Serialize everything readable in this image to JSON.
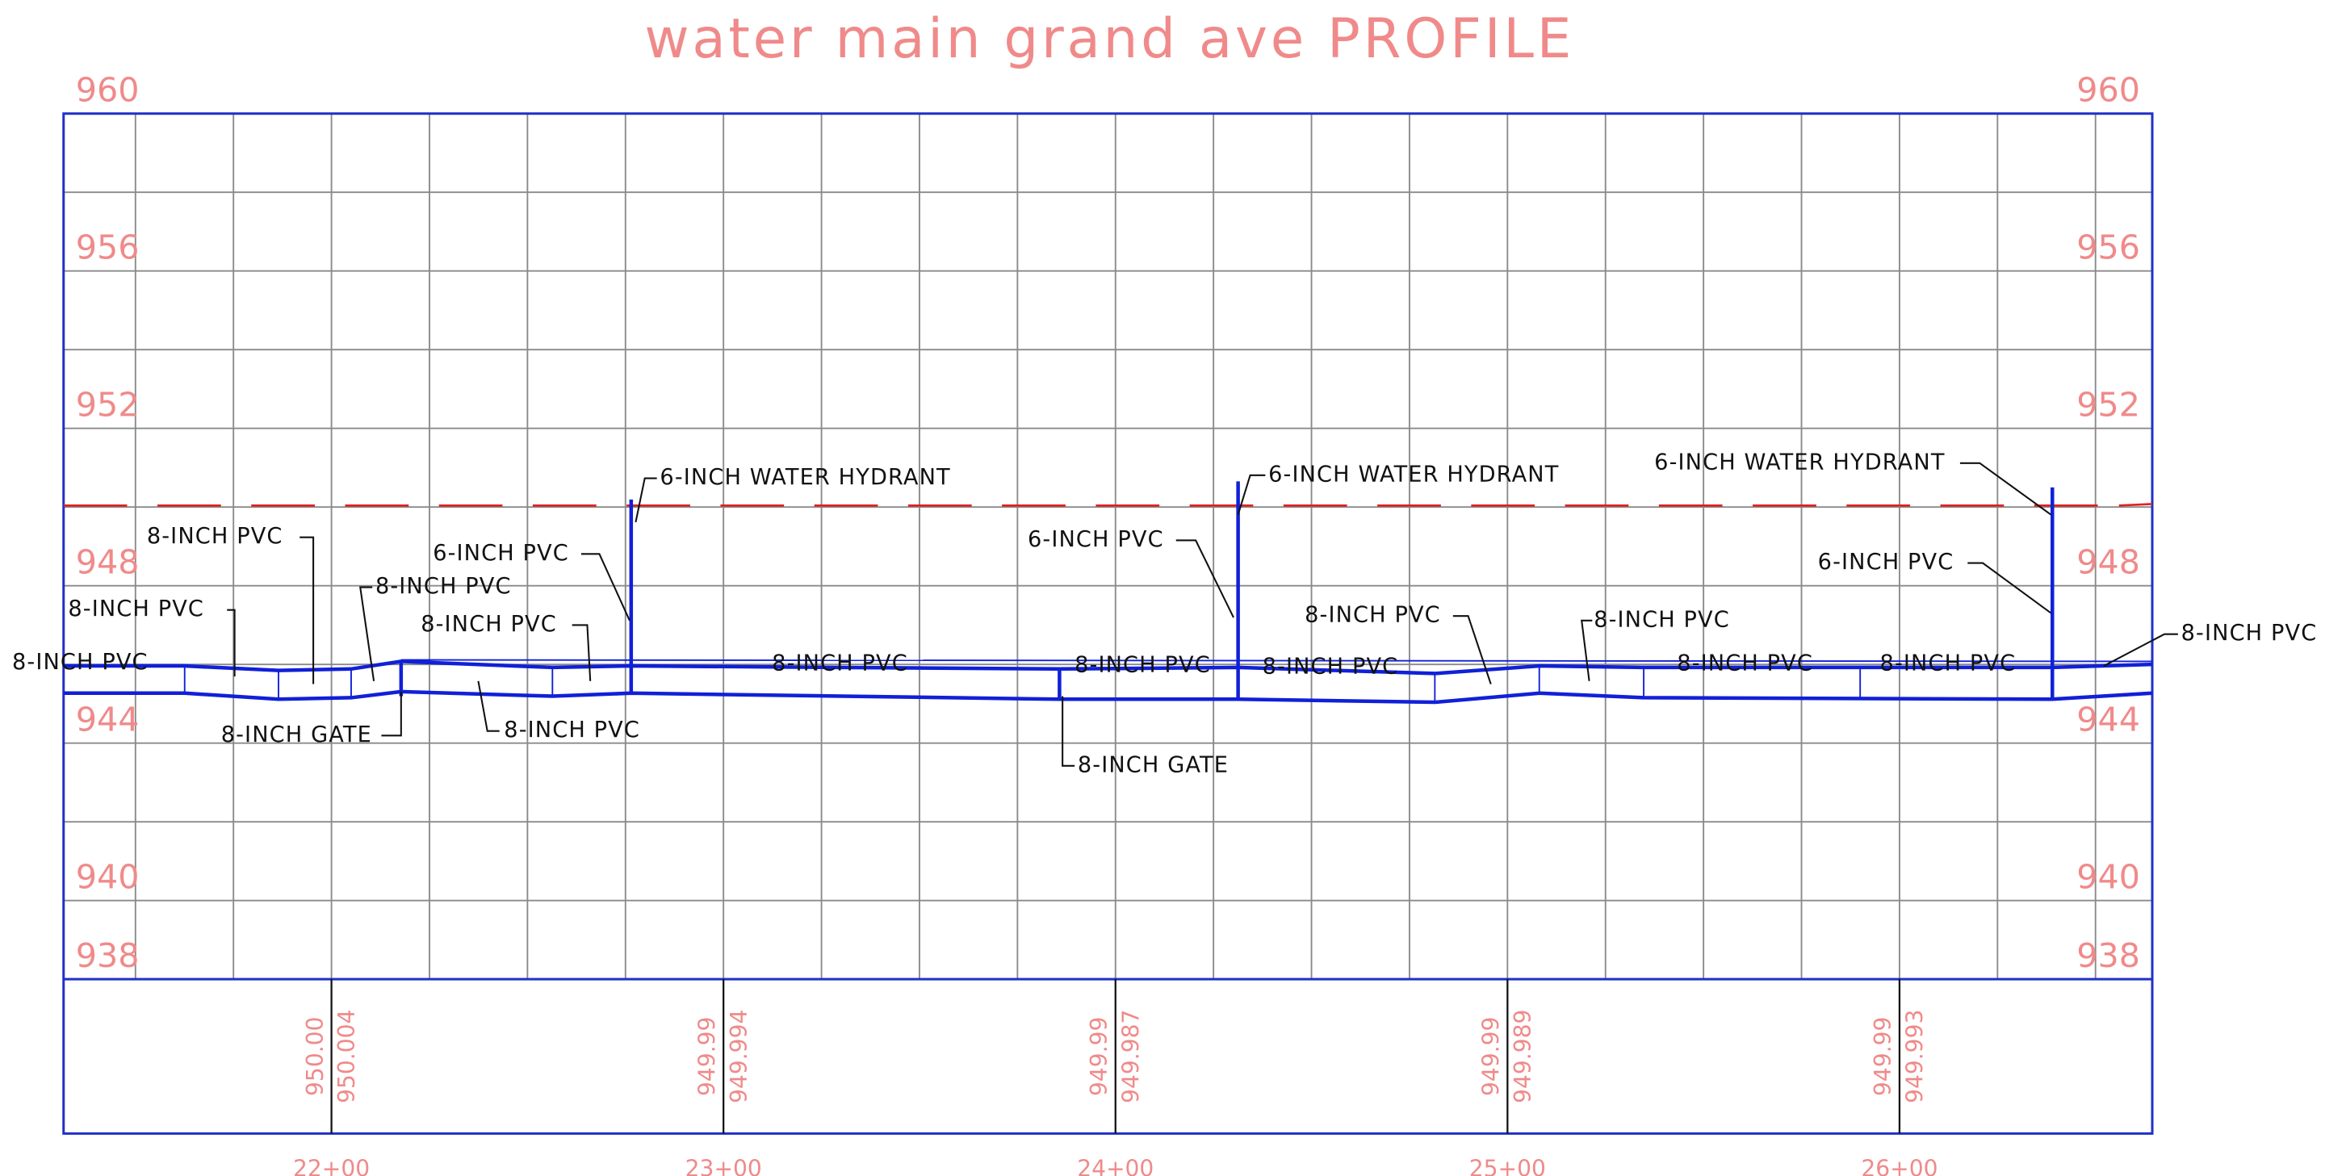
{
  "title": "water main grand ave PROFILE",
  "elevations": [
    960,
    956,
    952,
    948,
    944,
    940,
    938
  ],
  "stations": [
    "22+00",
    "23+00",
    "24+00",
    "25+00",
    "26+00"
  ],
  "profile_labels": [
    {
      "existing": "950.00",
      "proposed": "950.004"
    },
    {
      "existing": "949.99",
      "proposed": "949.994"
    },
    {
      "existing": "949.99",
      "proposed": "949.987"
    },
    {
      "existing": "949.99",
      "proposed": "949.989"
    },
    {
      "existing": "949.99",
      "proposed": "949.993"
    }
  ],
  "callouts": [
    "8-INCH PVC",
    "8-INCH PVC",
    "8-INCH PVC",
    "8-INCH PVC",
    "8-INCH GATE",
    "6-INCH PVC",
    "8-INCH PVC",
    "6-INCH WATER HYDRANT",
    "8-INCH PVC",
    "8-INCH PVC",
    "6-INCH PVC",
    "6-INCH WATER HYDRANT",
    "8-INCH PVC",
    "8-INCH GATE",
    "8-INCH PVC",
    "8-INCH PVC",
    "8-INCH PVC",
    "8-INCH PVC",
    "6-INCH WATER HYDRANT",
    "6-INCH PVC",
    "8-INCH PVC",
    "8-INCH PVC"
  ]
}
